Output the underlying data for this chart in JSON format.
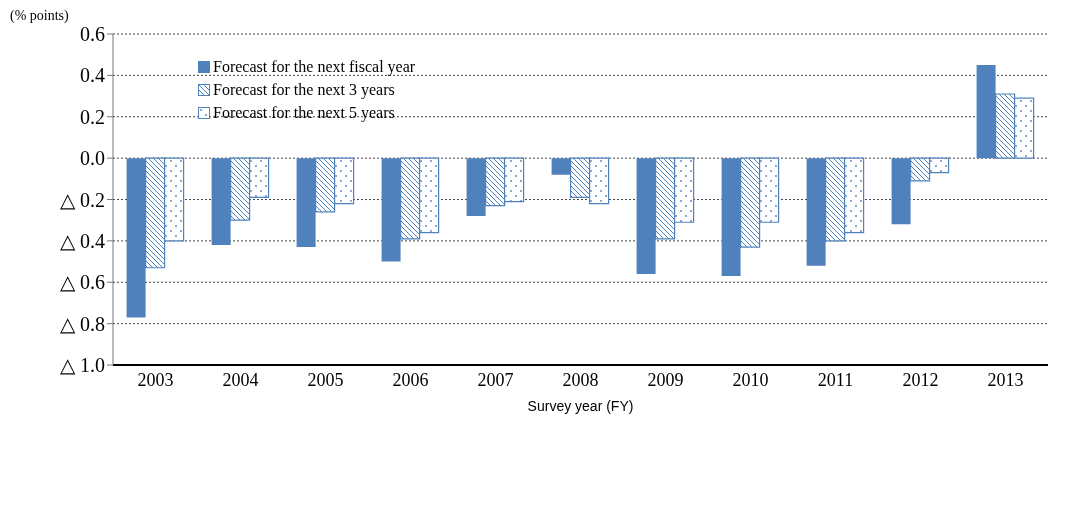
{
  "chart_data": {
    "type": "bar",
    "ylabel": "(% points)",
    "xlabel": "Survey year (FY)",
    "categories": [
      "2003",
      "2004",
      "2005",
      "2006",
      "2007",
      "2008",
      "2009",
      "2010",
      "2011",
      "2012",
      "2013"
    ],
    "series": [
      {
        "name": "Forecast for the next fiscal year",
        "color": "#4f81bd",
        "values": [
          -0.77,
          -0.42,
          -0.43,
          -0.5,
          -0.28,
          -0.08,
          -0.56,
          -0.57,
          -0.52,
          -0.32,
          0.45
        ]
      },
      {
        "name": "Forecast for the next 3 years",
        "color": "#4f81bd",
        "values": [
          -0.53,
          -0.3,
          -0.26,
          -0.39,
          -0.23,
          -0.19,
          -0.39,
          -0.43,
          -0.4,
          -0.11,
          0.31
        ]
      },
      {
        "name": "Forecast for the next 5 years",
        "color": "#4f81bd",
        "values": [
          -0.4,
          -0.19,
          -0.22,
          -0.36,
          -0.21,
          -0.22,
          -0.31,
          -0.31,
          -0.36,
          -0.07,
          0.29
        ]
      }
    ],
    "ylim": [
      -1.0,
      0.6
    ],
    "yticks": [
      0.6,
      0.4,
      0.2,
      {
        "value": 0,
        "label": "0.0"
      },
      {
        "value": -0.2,
        "label": "△ 0.2"
      },
      {
        "value": -0.4,
        "label": "△ 0.4"
      },
      {
        "value": -0.6,
        "label": "△ 0.6"
      },
      {
        "value": -0.8,
        "label": "△ 0.8"
      },
      {
        "value": -1.0,
        "label": "△ 1.0"
      }
    ],
    "grid": "y",
    "legend": "top left"
  }
}
